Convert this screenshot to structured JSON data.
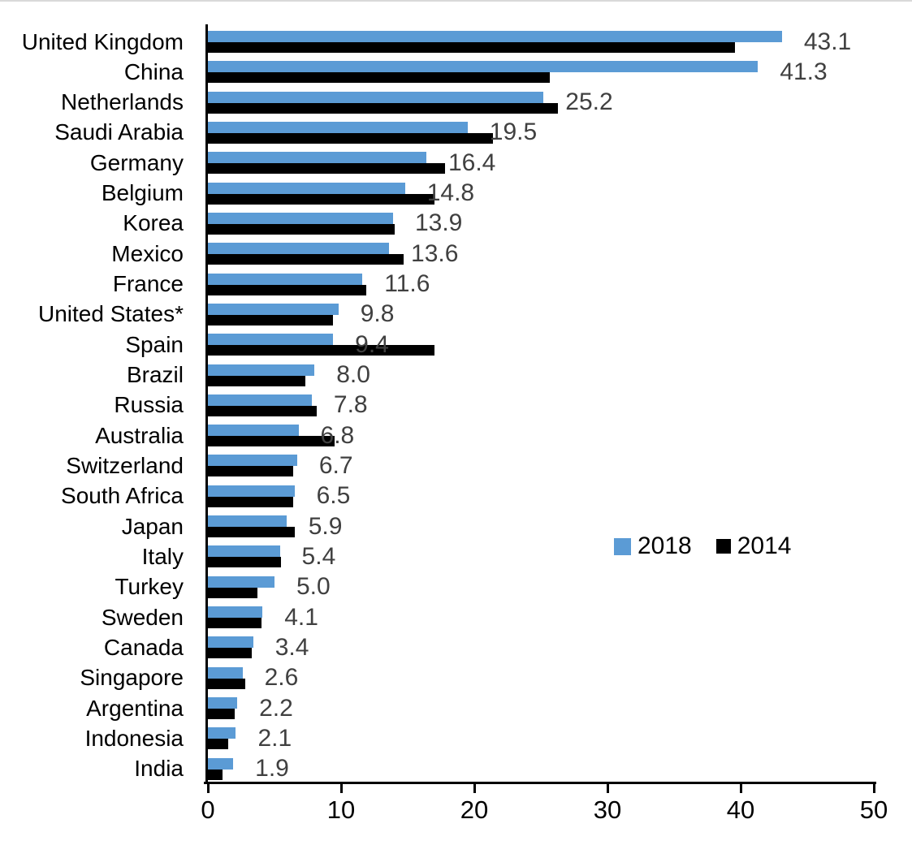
{
  "chart_data": {
    "type": "bar",
    "orientation": "horizontal",
    "title": "",
    "xlabel": "",
    "ylabel": "",
    "categories": [
      "United Kingdom",
      "China",
      "Netherlands",
      "Saudi Arabia",
      "Germany",
      "Belgium",
      "Korea",
      "Mexico",
      "France",
      "United States*",
      "Spain",
      "Brazil",
      "Russia",
      "Australia",
      "Switzerland",
      "South Africa",
      "Japan",
      "Italy",
      "Turkey",
      "Sweden",
      "Canada",
      "Singapore",
      "Argentina",
      "Indonesia",
      "India"
    ],
    "series": [
      {
        "name": "2018",
        "color": "#5B9BD5",
        "values": [
          43.1,
          41.3,
          25.2,
          19.5,
          16.4,
          14.8,
          13.9,
          13.6,
          11.6,
          9.8,
          9.4,
          8.0,
          7.8,
          6.8,
          6.7,
          6.5,
          5.9,
          5.4,
          5.0,
          4.1,
          3.4,
          2.6,
          2.2,
          2.1,
          1.9
        ],
        "data_labels": [
          "43.1",
          "41.3",
          "25.2",
          "19.5",
          "16.4",
          "14.8",
          "13.9",
          "13.6",
          "11.6",
          "9.8",
          "9.4",
          "8.0",
          "7.8",
          "6.8",
          "6.7",
          "6.5",
          "5.9",
          "5.4",
          "5.0",
          "4.1",
          "3.4",
          "2.6",
          "2.2",
          "2.1",
          "1.9"
        ]
      },
      {
        "name": "2014",
        "color": "#000000",
        "values": [
          39.6,
          25.7,
          26.3,
          21.4,
          17.8,
          17.0,
          14.0,
          14.7,
          11.9,
          9.4,
          17.0,
          7.3,
          8.2,
          9.5,
          6.4,
          6.4,
          6.5,
          5.5,
          3.7,
          4.0,
          3.3,
          2.8,
          2.0,
          1.5,
          1.1
        ],
        "data_labels": []
      }
    ],
    "xlim": [
      0,
      50
    ],
    "x_ticks": [
      "0",
      "10",
      "20",
      "30",
      "40",
      "50"
    ],
    "x_tick_values": [
      0,
      10,
      20,
      30,
      40,
      50
    ],
    "grid": false,
    "legend": {
      "position": "middle-right",
      "entries": [
        {
          "label": "2018",
          "color": "#5B9BD5"
        },
        {
          "label": "2014",
          "color": "#000000"
        }
      ]
    },
    "value_label_color": "#404040"
  }
}
